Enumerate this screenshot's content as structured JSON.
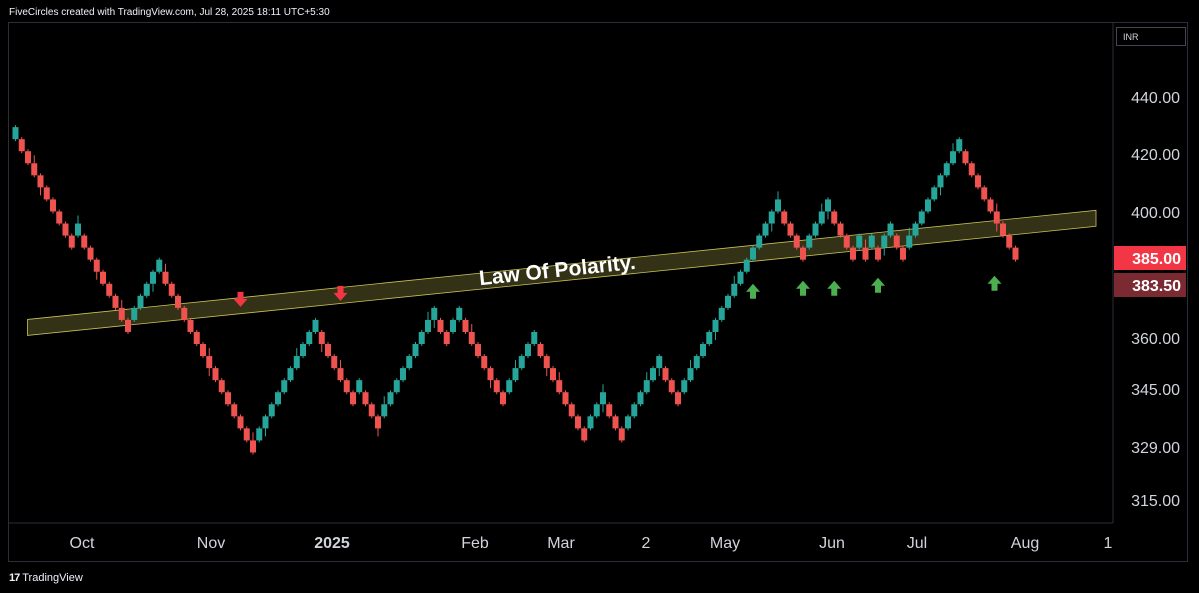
{
  "header": {
    "text": "FiveCircles created with TradingView.com, Jul 28, 2025 18:11 UTC+5:30"
  },
  "footer": {
    "logo": "17",
    "brand": "TradingView"
  },
  "currency": "INR",
  "colors": {
    "up": "#26a69a",
    "down": "#ef5350",
    "band": "#c9c25a",
    "arrow_down": "#f23645",
    "arrow_up": "#4caf50",
    "price_last": "#f23645",
    "price_band": "#7a2a30"
  },
  "chart_data": {
    "type": "renko",
    "title": "",
    "annotation": "Law Of Polarity.",
    "y_ticks": [
      "440.00",
      "420.00",
      "400.00",
      "385.00",
      "360.00",
      "345.00",
      "329.00",
      "315.00"
    ],
    "y_values": [
      440,
      420,
      400,
      385,
      360,
      345,
      329,
      315
    ],
    "x_ticks": [
      "Oct",
      "Nov",
      "2025",
      "Feb",
      "Mar",
      "2",
      "May",
      "Jun",
      "Jul",
      "Aug",
      "1"
    ],
    "price_labels": [
      {
        "label": "385.00",
        "value": 385.0,
        "kind": "last"
      },
      {
        "label": "383.50",
        "value": 383.5,
        "kind": "line"
      }
    ],
    "band": {
      "from": {
        "brick": 0,
        "price": 363
      },
      "to": {
        "brick": 118,
        "price": 388
      }
    },
    "bricks": [
      {
        "o": 426,
        "c": 430
      },
      {
        "o": 426,
        "c": 422
      },
      {
        "o": 422,
        "c": 418
      },
      {
        "o": 418,
        "c": 414
      },
      {
        "o": 414,
        "c": 410
      },
      {
        "o": 410,
        "c": 406
      },
      {
        "o": 406,
        "c": 402
      },
      {
        "o": 402,
        "c": 398
      },
      {
        "o": 398,
        "c": 394
      },
      {
        "o": 394,
        "c": 390
      },
      {
        "o": 394,
        "c": 398
      },
      {
        "o": 394,
        "c": 390
      },
      {
        "o": 390,
        "c": 386
      },
      {
        "o": 386,
        "c": 382
      },
      {
        "o": 382,
        "c": 378
      },
      {
        "o": 378,
        "c": 374
      },
      {
        "o": 374,
        "c": 370
      },
      {
        "o": 370,
        "c": 366
      },
      {
        "o": 366,
        "c": 362
      },
      {
        "o": 366,
        "c": 370
      },
      {
        "o": 370,
        "c": 374
      },
      {
        "o": 374,
        "c": 378
      },
      {
        "o": 378,
        "c": 382
      },
      {
        "o": 382,
        "c": 386
      },
      {
        "o": 382,
        "c": 378
      },
      {
        "o": 378,
        "c": 374
      },
      {
        "o": 374,
        "c": 370
      },
      {
        "o": 370,
        "c": 366
      },
      {
        "o": 366,
        "c": 362
      },
      {
        "o": 362,
        "c": 358
      },
      {
        "o": 358,
        "c": 354
      },
      {
        "o": 354,
        "c": 350
      },
      {
        "o": 350,
        "c": 346
      },
      {
        "o": 346,
        "c": 342
      },
      {
        "o": 342,
        "c": 338
      },
      {
        "o": 338,
        "c": 334
      },
      {
        "o": 334,
        "c": 330
      },
      {
        "o": 330,
        "c": 326
      },
      {
        "o": 326,
        "c": 322
      },
      {
        "o": 326,
        "c": 330
      },
      {
        "o": 330,
        "c": 334
      },
      {
        "o": 334,
        "c": 338
      },
      {
        "o": 338,
        "c": 342
      },
      {
        "o": 342,
        "c": 346
      },
      {
        "o": 346,
        "c": 350
      },
      {
        "o": 350,
        "c": 354
      },
      {
        "o": 354,
        "c": 358
      },
      {
        "o": 358,
        "c": 362
      },
      {
        "o": 362,
        "c": 366
      },
      {
        "o": 362,
        "c": 358
      },
      {
        "o": 358,
        "c": 354
      },
      {
        "o": 354,
        "c": 350
      },
      {
        "o": 350,
        "c": 346
      },
      {
        "o": 346,
        "c": 342
      },
      {
        "o": 342,
        "c": 338
      },
      {
        "o": 342,
        "c": 346
      },
      {
        "o": 342,
        "c": 338
      },
      {
        "o": 338,
        "c": 334
      },
      {
        "o": 334,
        "c": 330
      },
      {
        "o": 334,
        "c": 338
      },
      {
        "o": 338,
        "c": 342
      },
      {
        "o": 342,
        "c": 346
      },
      {
        "o": 346,
        "c": 350
      },
      {
        "o": 350,
        "c": 354
      },
      {
        "o": 354,
        "c": 358
      },
      {
        "o": 358,
        "c": 362
      },
      {
        "o": 362,
        "c": 366
      },
      {
        "o": 366,
        "c": 370
      },
      {
        "o": 366,
        "c": 362
      },
      {
        "o": 362,
        "c": 358
      },
      {
        "o": 362,
        "c": 366
      },
      {
        "o": 366,
        "c": 370
      },
      {
        "o": 366,
        "c": 362
      },
      {
        "o": 362,
        "c": 358
      },
      {
        "o": 358,
        "c": 354
      },
      {
        "o": 354,
        "c": 350
      },
      {
        "o": 350,
        "c": 346
      },
      {
        "o": 346,
        "c": 342
      },
      {
        "o": 342,
        "c": 338
      },
      {
        "o": 342,
        "c": 346
      },
      {
        "o": 346,
        "c": 350
      },
      {
        "o": 350,
        "c": 354
      },
      {
        "o": 354,
        "c": 358
      },
      {
        "o": 358,
        "c": 362
      },
      {
        "o": 358,
        "c": 354
      },
      {
        "o": 354,
        "c": 350
      },
      {
        "o": 350,
        "c": 346
      },
      {
        "o": 346,
        "c": 342
      },
      {
        "o": 342,
        "c": 338
      },
      {
        "o": 338,
        "c": 334
      },
      {
        "o": 334,
        "c": 330
      },
      {
        "o": 330,
        "c": 326
      },
      {
        "o": 330,
        "c": 334
      },
      {
        "o": 334,
        "c": 338
      },
      {
        "o": 338,
        "c": 342
      },
      {
        "o": 338,
        "c": 334
      },
      {
        "o": 334,
        "c": 330
      },
      {
        "o": 330,
        "c": 326
      },
      {
        "o": 330,
        "c": 334
      },
      {
        "o": 334,
        "c": 338
      },
      {
        "o": 338,
        "c": 342
      },
      {
        "o": 342,
        "c": 346
      },
      {
        "o": 346,
        "c": 350
      },
      {
        "o": 350,
        "c": 354
      },
      {
        "o": 350,
        "c": 346
      },
      {
        "o": 346,
        "c": 342
      },
      {
        "o": 342,
        "c": 338
      },
      {
        "o": 342,
        "c": 346
      },
      {
        "o": 346,
        "c": 350
      },
      {
        "o": 350,
        "c": 354
      },
      {
        "o": 354,
        "c": 358
      },
      {
        "o": 358,
        "c": 362
      },
      {
        "o": 362,
        "c": 366
      },
      {
        "o": 366,
        "c": 370
      },
      {
        "o": 370,
        "c": 374
      },
      {
        "o": 374,
        "c": 378
      },
      {
        "o": 378,
        "c": 382
      },
      {
        "o": 382,
        "c": 386
      },
      {
        "o": 386,
        "c": 390
      },
      {
        "o": 390,
        "c": 394
      },
      {
        "o": 394,
        "c": 398
      },
      {
        "o": 398,
        "c": 402
      },
      {
        "o": 402,
        "c": 406
      },
      {
        "o": 402,
        "c": 398
      },
      {
        "o": 398,
        "c": 394
      },
      {
        "o": 394,
        "c": 390
      },
      {
        "o": 390,
        "c": 386
      },
      {
        "o": 390,
        "c": 394
      },
      {
        "o": 394,
        "c": 398
      },
      {
        "o": 398,
        "c": 402
      },
      {
        "o": 402,
        "c": 406
      },
      {
        "o": 402,
        "c": 398
      },
      {
        "o": 398,
        "c": 394
      },
      {
        "o": 394,
        "c": 390
      },
      {
        "o": 390,
        "c": 386
      },
      {
        "o": 390,
        "c": 394
      },
      {
        "o": 390,
        "c": 386
      },
      {
        "o": 390,
        "c": 394
      },
      {
        "o": 390,
        "c": 386
      },
      {
        "o": 390,
        "c": 394
      },
      {
        "o": 394,
        "c": 398
      },
      {
        "o": 394,
        "c": 390
      },
      {
        "o": 390,
        "c": 386
      },
      {
        "o": 390,
        "c": 394
      },
      {
        "o": 394,
        "c": 398
      },
      {
        "o": 398,
        "c": 402
      },
      {
        "o": 402,
        "c": 406
      },
      {
        "o": 406,
        "c": 410
      },
      {
        "o": 410,
        "c": 414
      },
      {
        "o": 414,
        "c": 418
      },
      {
        "o": 418,
        "c": 422
      },
      {
        "o": 422,
        "c": 426
      },
      {
        "o": 422,
        "c": 418
      },
      {
        "o": 418,
        "c": 414
      },
      {
        "o": 414,
        "c": 410
      },
      {
        "o": 410,
        "c": 406
      },
      {
        "o": 406,
        "c": 402
      },
      {
        "o": 402,
        "c": 398
      },
      {
        "o": 398,
        "c": 394
      },
      {
        "o": 394,
        "c": 390
      },
      {
        "o": 390,
        "c": 386
      }
    ],
    "down_arrows": [
      {
        "brick": 36,
        "price": 373
      },
      {
        "brick": 52,
        "price": 375
      }
    ],
    "up_arrows": [
      {
        "brick": 118,
        "price": 380
      },
      {
        "brick": 126,
        "price": 381
      },
      {
        "brick": 131,
        "price": 381
      },
      {
        "brick": 138,
        "price": 382
      },
      {
        "brick": 156,
        "price": 382
      }
    ]
  }
}
